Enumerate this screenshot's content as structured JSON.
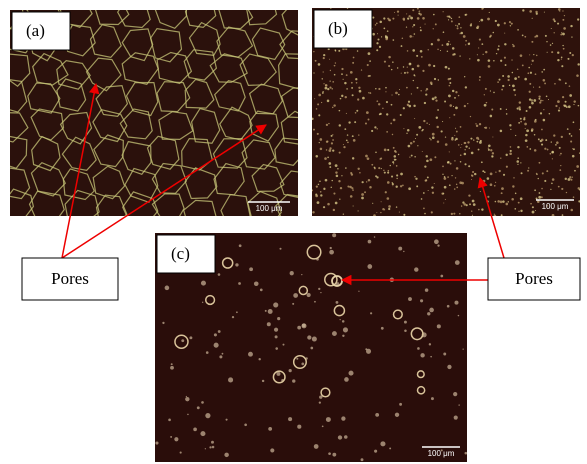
{
  "panels": [
    {
      "label": "(a)",
      "scale": "100 μm"
    },
    {
      "label": "(b)",
      "scale": "100 μm"
    },
    {
      "label": "(c)",
      "scale": "100 μm"
    }
  ],
  "callouts": [
    {
      "text": "Pores"
    },
    {
      "text": "Pores"
    }
  ]
}
